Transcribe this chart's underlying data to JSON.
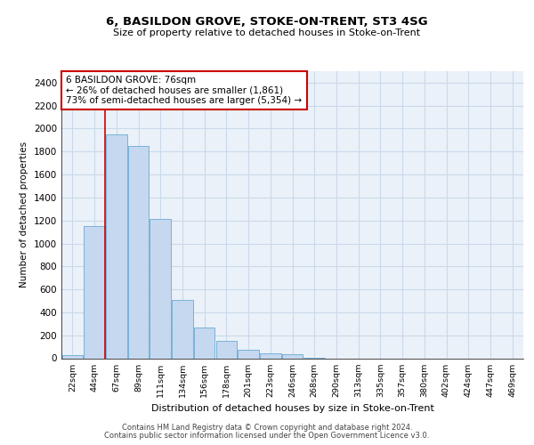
{
  "title": "6, BASILDON GROVE, STOKE-ON-TRENT, ST3 4SG",
  "subtitle": "Size of property relative to detached houses in Stoke-on-Trent",
  "xlabel": "Distribution of detached houses by size in Stoke-on-Trent",
  "ylabel": "Number of detached properties",
  "categories": [
    "22sqm",
    "44sqm",
    "67sqm",
    "89sqm",
    "111sqm",
    "134sqm",
    "156sqm",
    "178sqm",
    "201sqm",
    "223sqm",
    "246sqm",
    "268sqm",
    "290sqm",
    "313sqm",
    "335sqm",
    "357sqm",
    "380sqm",
    "402sqm",
    "424sqm",
    "447sqm",
    "469sqm"
  ],
  "values": [
    30,
    1150,
    1950,
    1850,
    1210,
    510,
    265,
    150,
    75,
    45,
    35,
    5,
    0,
    0,
    0,
    0,
    0,
    0,
    0,
    0,
    0
  ],
  "bar_color": "#c5d8ef",
  "bar_edge_color": "#6aaad4",
  "grid_color": "#cad9ea",
  "background_color": "#ffffff",
  "plot_bg_color": "#eaf1f8",
  "annotation_text": "6 BASILDON GROVE: 76sqm\n← 26% of detached houses are smaller (1,861)\n73% of semi-detached houses are larger (5,354) →",
  "vline_color": "#cc0000",
  "annotation_box_color": "#ffffff",
  "annotation_box_edge": "#cc0000",
  "ylim": [
    0,
    2500
  ],
  "yticks": [
    0,
    200,
    400,
    600,
    800,
    1000,
    1200,
    1400,
    1600,
    1800,
    2000,
    2200,
    2400
  ],
  "footer_line1": "Contains HM Land Registry data © Crown copyright and database right 2024.",
  "footer_line2": "Contains public sector information licensed under the Open Government Licence v3.0."
}
